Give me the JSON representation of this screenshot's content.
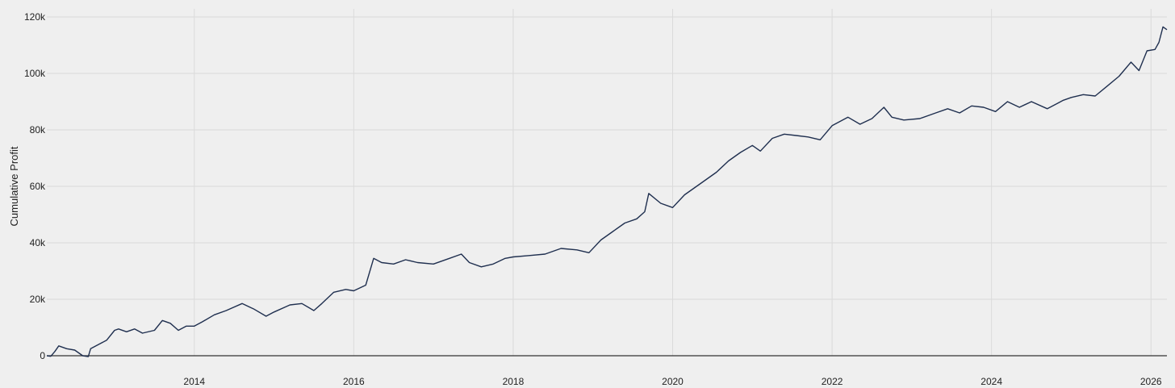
{
  "chart_data": {
    "type": "line",
    "title": "",
    "xlabel": "",
    "ylabel": "Cumulative Profit",
    "xlim": [
      2012.15,
      2026.2
    ],
    "ylim": [
      0,
      120000
    ],
    "x_ticks": [
      2014,
      2016,
      2018,
      2020,
      2022,
      2024,
      2026
    ],
    "y_ticks": [
      0,
      20000,
      40000,
      60000,
      80000,
      100000,
      120000
    ],
    "y_tick_labels": [
      "0",
      "20k",
      "40k",
      "60k",
      "80k",
      "100k",
      "120k"
    ],
    "grid": true,
    "legend": "none",
    "colors": {
      "line": "#1f2f4f",
      "zero_line": "#333333",
      "grid": "#dadada",
      "background": "#efefef"
    },
    "series": [
      {
        "x": [
          2012.15,
          2012.2,
          2012.25,
          2012.3,
          2012.4,
          2012.5,
          2012.6,
          2012.67,
          2012.7,
          2012.8,
          2012.9,
          2013.0,
          2013.05,
          2013.15,
          2013.25,
          2013.35,
          2013.5,
          2013.6,
          2013.7,
          2013.8,
          2013.9,
          2014.0,
          2014.1,
          2014.25,
          2014.4,
          2014.6,
          2014.75,
          2014.9,
          2015.0,
          2015.2,
          2015.35,
          2015.5,
          2015.6,
          2015.75,
          2015.9,
          2016.0,
          2016.15,
          2016.25,
          2016.35,
          2016.5,
          2016.65,
          2016.8,
          2017.0,
          2017.2,
          2017.35,
          2017.45,
          2017.6,
          2017.75,
          2017.9,
          2018.0,
          2018.2,
          2018.4,
          2018.6,
          2018.8,
          2018.95,
          2019.1,
          2019.25,
          2019.4,
          2019.55,
          2019.65,
          2019.7,
          2019.85,
          2020.0,
          2020.15,
          2020.35,
          2020.55,
          2020.7,
          2020.85,
          2021.0,
          2021.1,
          2021.25,
          2021.4,
          2021.55,
          2021.7,
          2021.85,
          2022.0,
          2022.2,
          2022.35,
          2022.5,
          2022.65,
          2022.75,
          2022.9,
          2023.1,
          2023.3,
          2023.45,
          2023.6,
          2023.75,
          2023.9,
          2024.05,
          2024.2,
          2024.35,
          2024.5,
          2024.7,
          2024.9,
          2025.0,
          2025.15,
          2025.3,
          2025.45,
          2025.6,
          2025.75,
          2025.85,
          2025.95,
          2026.05,
          2026.1,
          2026.15,
          2026.2
        ],
        "y": [
          0,
          -200,
          1500,
          3500,
          2500,
          2000,
          0,
          -300,
          2500,
          4000,
          5500,
          9000,
          9500,
          8500,
          9500,
          8000,
          9000,
          12500,
          11500,
          9000,
          10500,
          10500,
          12000,
          14500,
          16000,
          18500,
          16500,
          14000,
          15500,
          18000,
          18500,
          16000,
          18500,
          22500,
          23500,
          23000,
          25000,
          34500,
          33000,
          32500,
          34000,
          33000,
          32500,
          34500,
          36000,
          33000,
          31500,
          32500,
          34500,
          35000,
          35500,
          36000,
          38000,
          37500,
          36500,
          41000,
          44000,
          47000,
          48500,
          51000,
          57500,
          54000,
          52500,
          57000,
          61000,
          65000,
          69000,
          72000,
          74500,
          72500,
          77000,
          78500,
          78000,
          77500,
          76500,
          81500,
          84500,
          82000,
          84000,
          88000,
          84500,
          83500,
          84000,
          86000,
          87500,
          86000,
          88500,
          88000,
          86500,
          90000,
          88000,
          90000,
          87500,
          90500,
          91500,
          92500,
          92000,
          95500,
          99000,
          104000,
          101000,
          108000,
          108500,
          111000,
          116500,
          115500
        ]
      }
    ]
  }
}
